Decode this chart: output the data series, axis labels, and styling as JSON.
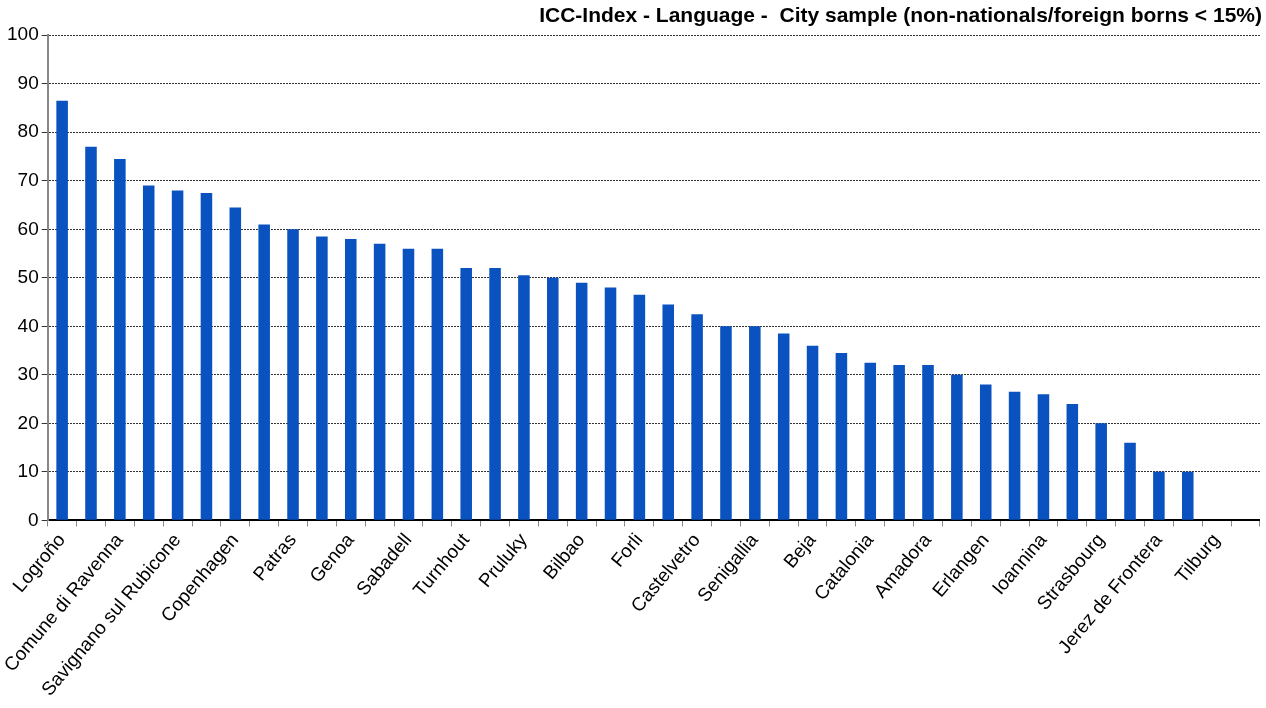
{
  "chart_data": {
    "type": "bar",
    "title": "ICC-Index - Language -  City sample (non-nationals/foreign borns < 15%)",
    "categories": [
      "Logroño",
      null,
      "Comune di Ravenna",
      null,
      "Savignano sul Rubicone",
      null,
      "Copenhagen",
      null,
      "Patras",
      null,
      "Genoa",
      null,
      "Sabadell",
      null,
      "Turnhout",
      null,
      "Pruluky",
      null,
      "Bilbao",
      null,
      "Forli",
      null,
      "Castelvetro",
      null,
      "Senigallia",
      null,
      "Beja",
      null,
      "Catalonia",
      null,
      "Amadora",
      null,
      "Erlangen",
      null,
      "Ioannina",
      null,
      "Strasbourg",
      null,
      "Jerez de Frontera",
      null,
      "Tilburg",
      null
    ],
    "values": [
      86.5,
      77,
      74.5,
      69,
      68,
      67.5,
      64.5,
      61,
      60,
      58.5,
      58,
      57,
      56,
      56,
      52,
      52,
      50.5,
      50,
      49,
      48,
      46.5,
      44.5,
      42.5,
      40,
      40,
      38.5,
      36,
      34.5,
      32.5,
      32,
      32,
      30,
      28,
      26.5,
      26,
      24,
      20,
      16,
      10,
      10,
      null,
      null
    ],
    "color": "#0a52bf",
    "ylim": [
      0,
      100
    ],
    "yticks": [
      0,
      10,
      20,
      30,
      40,
      50,
      60,
      70,
      80,
      90,
      100
    ],
    "grid": "y",
    "legend": false
  }
}
